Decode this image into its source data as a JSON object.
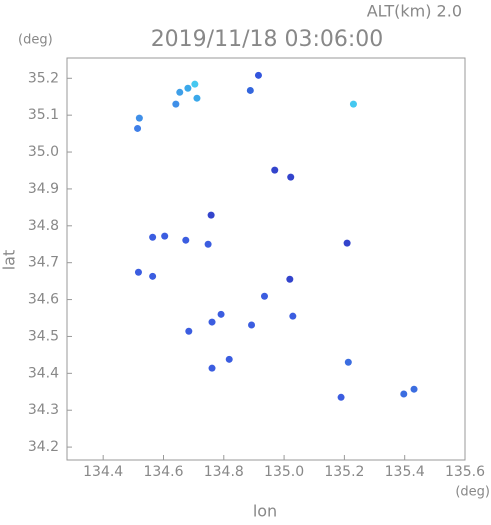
{
  "chart_data": {
    "type": "scatter",
    "title": "2019/11/18 03:06:00",
    "subtitle": "ALT(km) 2.0",
    "y_unit": "(deg)",
    "x_unit": "(deg)",
    "y_label": "lat",
    "x_label": "lon",
    "xlim": [
      134.28,
      135.6
    ],
    "ylim": [
      34.165,
      35.255
    ],
    "xticks": [
      134.4,
      134.6,
      134.8,
      {
        "value": 135.0,
        "label": "135.0"
      },
      135.2,
      135.4,
      135.6
    ],
    "yticks": [
      34.2,
      34.3,
      34.4,
      34.5,
      34.6,
      34.7,
      34.8,
      34.9,
      {
        "value": 35.0,
        "label": "35.0"
      },
      35.1,
      35.2
    ],
    "x": [
      134.514,
      134.52,
      134.654,
      134.681,
      134.704,
      134.641,
      134.711,
      134.915,
      134.888,
      135.23,
      134.564,
      134.604,
      134.674,
      134.969,
      135.022,
      134.758,
      134.748,
      135.209,
      134.517,
      134.564,
      135.019,
      134.935,
      134.791,
      134.761,
      134.684,
      134.892,
      135.029,
      134.818,
      134.761,
      135.213,
      135.189,
      135.397,
      135.431
    ],
    "y": [
      35.064,
      35.092,
      35.162,
      35.173,
      35.184,
      35.13,
      35.146,
      35.208,
      35.167,
      35.13,
      34.769,
      34.772,
      34.761,
      34.951,
      34.932,
      34.829,
      34.75,
      34.753,
      34.674,
      34.663,
      34.655,
      34.609,
      34.56,
      34.539,
      34.514,
      34.531,
      34.555,
      34.438,
      34.414,
      34.43,
      34.335,
      34.344,
      34.357
    ],
    "colors": [
      "#3f7fe8",
      "#3f8fe8",
      "#3f9fe8",
      "#3aa8ea",
      "#45c8f0",
      "#3f8fe8",
      "#3aa8ea",
      "#3355dd",
      "#3366dd",
      "#45c8f0",
      "#3b5de0",
      "#3b5de0",
      "#3b5de0",
      "#3344cc",
      "#3344cc",
      "#3344cc",
      "#3b5de0",
      "#3344cc",
      "#3b5de0",
      "#3b5de0",
      "#3344cc",
      "#3b5de0",
      "#3b5de0",
      "#3b5de0",
      "#3b5de0",
      "#3b5de0",
      "#3b5de0",
      "#3b5de0",
      "#3b5de0",
      "#3b6de0",
      "#3b5de0",
      "#3b6de0",
      "#3b6de0"
    ]
  }
}
